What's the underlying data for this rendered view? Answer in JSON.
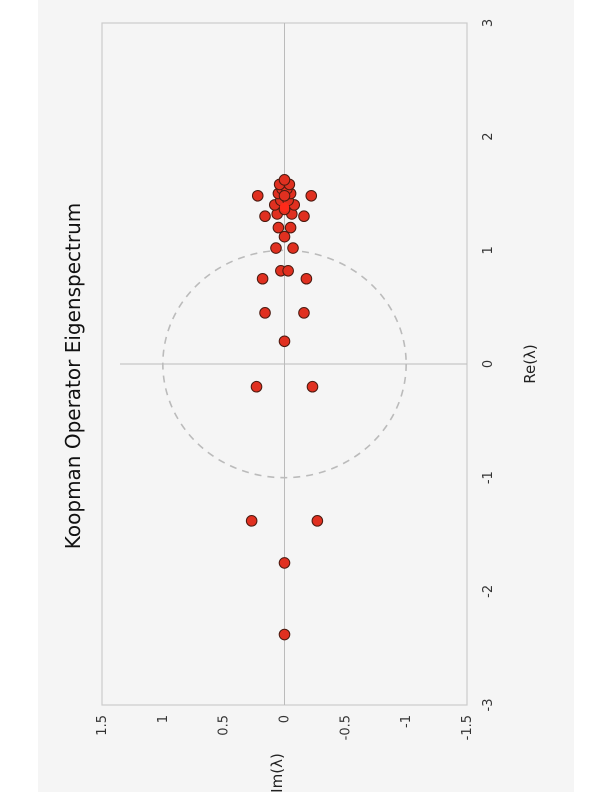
{
  "chart_data": {
    "type": "scatter",
    "title": "Koopman Operator Eigenspectrum",
    "xlabel": "Re(λ)",
    "ylabel": "Im(λ)",
    "xlim": [
      -3,
      3
    ],
    "ylim": [
      -1.5,
      1.5
    ],
    "x_ticks": [
      -3,
      -2,
      -1,
      0,
      1,
      2,
      3
    ],
    "y_ticks": [
      1.5,
      1,
      0.5,
      0,
      -0.5,
      -1,
      -1.5
    ],
    "grid": false,
    "reference_lines": "x=0 and y=0",
    "unit_circle": {
      "radius": 1,
      "style": "dashed",
      "color": "#bbbbbb"
    },
    "orientation": "rotated 90° clockwise",
    "colors": {
      "background": "#f5f5f5",
      "marker_fill": "#e03020",
      "marker_edge": "#4a1a10",
      "axis_line": "#bbbbbb",
      "frame": "#cccccc"
    },
    "series": [
      {
        "points": [
          {
            "x": -2.38,
            "y": 0.0
          },
          {
            "x": -1.75,
            "y": 0.0
          },
          {
            "x": -1.38,
            "y": 0.27
          },
          {
            "x": -1.38,
            "y": -0.27
          },
          {
            "x": -0.2,
            "y": 0.23
          },
          {
            "x": -0.2,
            "y": -0.23
          },
          {
            "x": 0.2,
            "y": 0.0
          },
          {
            "x": 0.45,
            "y": 0.16
          },
          {
            "x": 0.45,
            "y": -0.16
          },
          {
            "x": 0.75,
            "y": 0.18
          },
          {
            "x": 0.75,
            "y": -0.18
          },
          {
            "x": 0.82,
            "y": 0.03
          },
          {
            "x": 0.82,
            "y": -0.03
          },
          {
            "x": 1.02,
            "y": 0.07
          },
          {
            "x": 1.02,
            "y": -0.07
          },
          {
            "x": 1.12,
            "y": 0.0
          },
          {
            "x": 1.2,
            "y": 0.05
          },
          {
            "x": 1.2,
            "y": -0.05
          },
          {
            "x": 1.3,
            "y": 0.16
          },
          {
            "x": 1.3,
            "y": -0.16
          },
          {
            "x": 1.32,
            "y": 0.06
          },
          {
            "x": 1.32,
            "y": -0.06
          },
          {
            "x": 1.36,
            "y": 0.0
          },
          {
            "x": 1.4,
            "y": 0.08
          },
          {
            "x": 1.4,
            "y": -0.08
          },
          {
            "x": 1.44,
            "y": 0.03
          },
          {
            "x": 1.44,
            "y": -0.03
          },
          {
            "x": 1.48,
            "y": 0.22
          },
          {
            "x": 1.48,
            "y": -0.22
          },
          {
            "x": 1.5,
            "y": 0.05
          },
          {
            "x": 1.5,
            "y": -0.05
          },
          {
            "x": 1.54,
            "y": 0.02
          },
          {
            "x": 1.54,
            "y": -0.02
          },
          {
            "x": 1.58,
            "y": 0.04
          },
          {
            "x": 1.58,
            "y": -0.04
          },
          {
            "x": 1.62,
            "y": 0.0
          },
          {
            "x": 1.48,
            "y": 0.0
          }
        ]
      }
    ],
    "highlight_point": {
      "x": 1.38,
      "y": 0.0
    }
  }
}
